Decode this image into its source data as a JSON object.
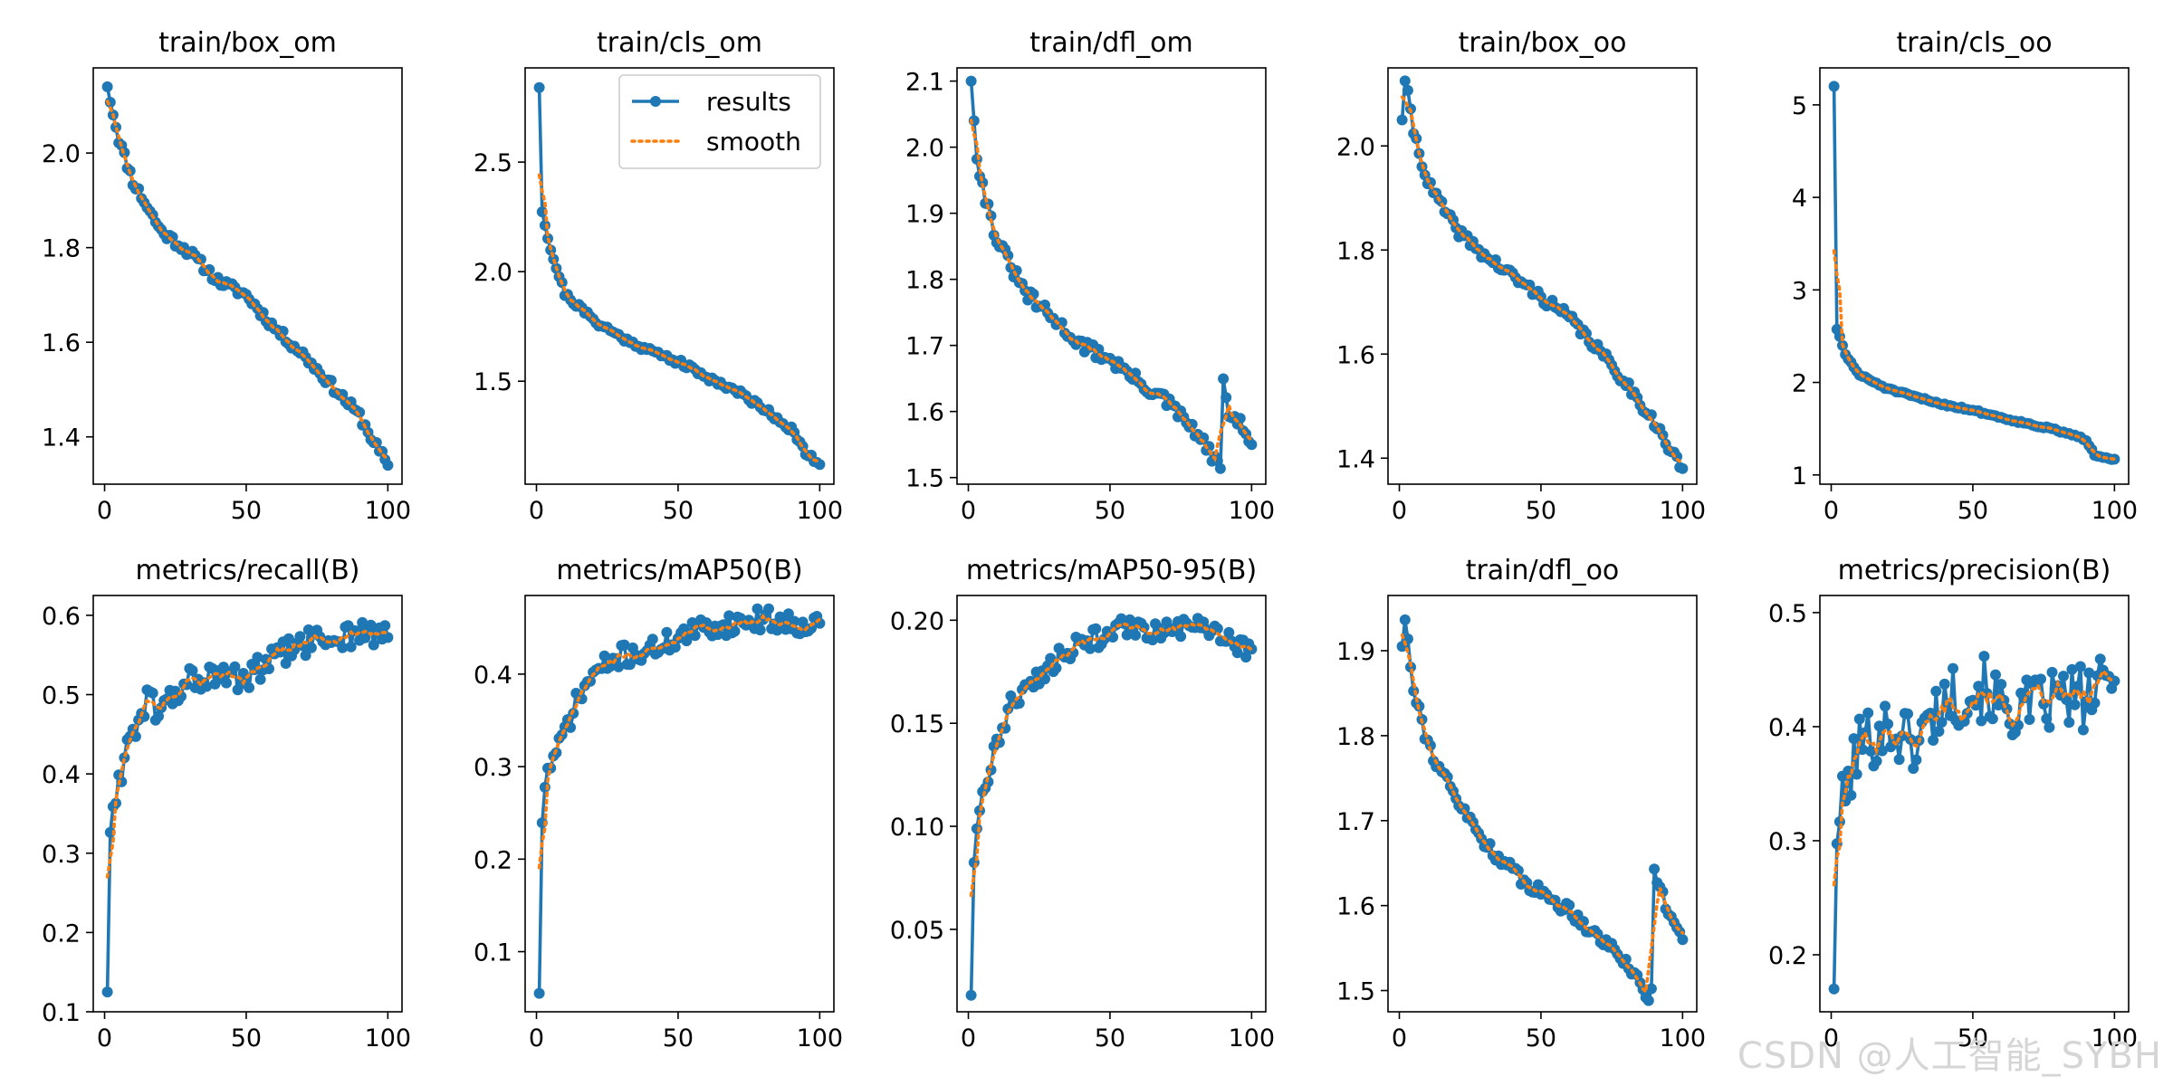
{
  "figure": {
    "legend": {
      "results_label": "results",
      "smooth_label": "smooth"
    },
    "colors": {
      "results": "#1f77b4",
      "smooth": "#ff7f0e"
    },
    "watermark": "CSDN @人工智能_SYBH"
  },
  "chart_data": [
    {
      "type": "line",
      "title": "train/box_om",
      "xlim": [
        -4,
        105
      ],
      "ylim": [
        1.3,
        2.18
      ],
      "xticks": [
        0,
        50,
        100
      ],
      "yticks": [
        1.4,
        1.6,
        1.8,
        2.0
      ],
      "yticklabels": [
        "1.4",
        "1.6",
        "1.8",
        "2.0"
      ],
      "legend": false,
      "series": [
        {
          "name": "results",
          "role": "results",
          "kind": "curve",
          "start": 2.14,
          "end": 1.34,
          "knots": [
            [
              1,
              2.14
            ],
            [
              5,
              2.03
            ],
            [
              10,
              1.94
            ],
            [
              20,
              1.835
            ],
            [
              30,
              1.79
            ],
            [
              40,
              1.73
            ],
            [
              50,
              1.7
            ],
            [
              60,
              1.63
            ],
            [
              70,
              1.575
            ],
            [
              80,
              1.51
            ],
            [
              90,
              1.445
            ],
            [
              95,
              1.39
            ],
            [
              100,
              1.34
            ]
          ],
          "noise": 0.01,
          "seed": 11
        },
        {
          "name": "smooth",
          "role": "smooth",
          "kind": "smooth"
        }
      ]
    },
    {
      "type": "line",
      "title": "train/cls_om",
      "xlim": [
        -4,
        105
      ],
      "ylim": [
        1.03,
        2.93
      ],
      "xticks": [
        0,
        50,
        100
      ],
      "yticks": [
        1.5,
        2.0,
        2.5
      ],
      "yticklabels": [
        "1.5",
        "2.0",
        "2.5"
      ],
      "legend": true,
      "series": [
        {
          "name": "results",
          "role": "results",
          "kind": "curve",
          "start": 2.84,
          "end": 1.12,
          "knots": [
            [
              1,
              2.84
            ],
            [
              2,
              2.28
            ],
            [
              5,
              2.1
            ],
            [
              10,
              1.9
            ],
            [
              20,
              1.78
            ],
            [
              30,
              1.7
            ],
            [
              40,
              1.64
            ],
            [
              50,
              1.59
            ],
            [
              60,
              1.52
            ],
            [
              70,
              1.46
            ],
            [
              80,
              1.38
            ],
            [
              90,
              1.28
            ],
            [
              95,
              1.17
            ],
            [
              100,
              1.12
            ]
          ],
          "noise": 0.014,
          "seed": 21
        },
        {
          "name": "smooth",
          "role": "smooth",
          "kind": "smooth"
        }
      ]
    },
    {
      "type": "line",
      "title": "train/dfl_om",
      "xlim": [
        -4,
        105
      ],
      "ylim": [
        1.49,
        2.12
      ],
      "xticks": [
        0,
        50,
        100
      ],
      "yticks": [
        1.5,
        1.6,
        1.7,
        1.8,
        1.9,
        2.0,
        2.1
      ],
      "yticklabels": [
        "1.5",
        "1.6",
        "1.7",
        "1.8",
        "1.9",
        "2.0",
        "2.1"
      ],
      "legend": false,
      "series": [
        {
          "name": "results",
          "role": "results",
          "kind": "curve",
          "start": 2.1,
          "end": 1.55,
          "knots": [
            [
              1,
              2.1
            ],
            [
              3,
              1.99
            ],
            [
              5,
              1.94
            ],
            [
              10,
              1.86
            ],
            [
              20,
              1.78
            ],
            [
              30,
              1.74
            ],
            [
              40,
              1.7
            ],
            [
              50,
              1.68
            ],
            [
              60,
              1.645
            ],
            [
              70,
              1.615
            ],
            [
              80,
              1.57
            ],
            [
              88,
              1.52
            ],
            [
              89,
              1.515
            ],
            [
              90,
              1.64
            ],
            [
              92,
              1.6
            ],
            [
              96,
              1.58
            ],
            [
              100,
              1.55
            ]
          ],
          "noise": 0.01,
          "seed": 31
        },
        {
          "name": "smooth",
          "role": "smooth",
          "kind": "smooth"
        }
      ]
    },
    {
      "type": "line",
      "title": "train/box_oo",
      "xlim": [
        -4,
        105
      ],
      "ylim": [
        1.35,
        2.15
      ],
      "xticks": [
        0,
        50,
        100
      ],
      "yticks": [
        1.4,
        1.6,
        1.8,
        2.0
      ],
      "yticklabels": [
        "1.4",
        "1.6",
        "1.8",
        "2.0"
      ],
      "legend": false,
      "series": [
        {
          "name": "results",
          "role": "results",
          "kind": "curve",
          "start": 2.05,
          "end": 1.38,
          "knots": [
            [
              1,
              2.05
            ],
            [
              2,
              2.13
            ],
            [
              5,
              2.03
            ],
            [
              10,
              1.93
            ],
            [
              20,
              1.84
            ],
            [
              30,
              1.79
            ],
            [
              40,
              1.75
            ],
            [
              50,
              1.71
            ],
            [
              60,
              1.67
            ],
            [
              70,
              1.61
            ],
            [
              80,
              1.545
            ],
            [
              90,
              1.47
            ],
            [
              95,
              1.42
            ],
            [
              100,
              1.38
            ]
          ],
          "noise": 0.01,
          "seed": 41
        },
        {
          "name": "smooth",
          "role": "smooth",
          "kind": "smooth"
        }
      ]
    },
    {
      "type": "line",
      "title": "train/cls_oo",
      "xlim": [
        -4,
        105
      ],
      "ylim": [
        0.9,
        5.4
      ],
      "xticks": [
        0,
        50,
        100
      ],
      "yticks": [
        1,
        2,
        3,
        4,
        5
      ],
      "yticklabels": [
        "1",
        "2",
        "3",
        "4",
        "5"
      ],
      "legend": false,
      "series": [
        {
          "name": "results",
          "role": "results",
          "kind": "curve",
          "start": 5.2,
          "end": 1.17,
          "knots": [
            [
              1,
              5.2
            ],
            [
              2,
              2.58
            ],
            [
              5,
              2.3
            ],
            [
              10,
              2.08
            ],
            [
              20,
              1.93
            ],
            [
              30,
              1.84
            ],
            [
              40,
              1.76
            ],
            [
              50,
              1.7
            ],
            [
              60,
              1.62
            ],
            [
              70,
              1.55
            ],
            [
              80,
              1.48
            ],
            [
              90,
              1.38
            ],
            [
              93,
              1.22
            ],
            [
              100,
              1.17
            ]
          ],
          "noise": 0.012,
          "seed": 51
        },
        {
          "name": "smooth",
          "role": "smooth",
          "kind": "smooth"
        }
      ]
    },
    {
      "type": "line",
      "title": "metrics/recall(B)",
      "xlim": [
        -4,
        105
      ],
      "ylim": [
        0.1,
        0.625
      ],
      "xticks": [
        0,
        50,
        100
      ],
      "yticks": [
        0.1,
        0.2,
        0.3,
        0.4,
        0.5,
        0.6
      ],
      "yticklabels": [
        "0.1",
        "0.2",
        "0.3",
        "0.4",
        "0.5",
        "0.6"
      ],
      "legend": false,
      "series": [
        {
          "name": "results",
          "role": "results",
          "kind": "curve",
          "start": 0.125,
          "end": 0.572,
          "knots": [
            [
              1,
              0.125
            ],
            [
              2,
              0.335
            ],
            [
              4,
              0.36
            ],
            [
              7,
              0.43
            ],
            [
              10,
              0.455
            ],
            [
              15,
              0.49
            ],
            [
              20,
              0.48
            ],
            [
              30,
              0.52
            ],
            [
              40,
              0.52
            ],
            [
              50,
              0.52
            ],
            [
              60,
              0.545
            ],
            [
              70,
              0.565
            ],
            [
              80,
              0.57
            ],
            [
              90,
              0.58
            ],
            [
              100,
              0.57
            ]
          ],
          "noise": 0.018,
          "seed": 61
        },
        {
          "name": "smooth",
          "role": "smooth",
          "kind": "smooth"
        }
      ]
    },
    {
      "type": "line",
      "title": "metrics/mAP50(B)",
      "xlim": [
        -4,
        105
      ],
      "ylim": [
        0.035,
        0.485
      ],
      "xticks": [
        0,
        50,
        100
      ],
      "yticks": [
        0.1,
        0.2,
        0.3,
        0.4
      ],
      "yticklabels": [
        "0.1",
        "0.2",
        "0.3",
        "0.4"
      ],
      "legend": false,
      "series": [
        {
          "name": "results",
          "role": "results",
          "kind": "curve",
          "start": 0.055,
          "end": 0.455,
          "knots": [
            [
              1,
              0.055
            ],
            [
              2,
              0.245
            ],
            [
              4,
              0.3
            ],
            [
              7,
              0.31
            ],
            [
              10,
              0.34
            ],
            [
              15,
              0.375
            ],
            [
              20,
              0.4
            ],
            [
              30,
              0.42
            ],
            [
              40,
              0.425
            ],
            [
              50,
              0.44
            ],
            [
              60,
              0.45
            ],
            [
              70,
              0.455
            ],
            [
              80,
              0.46
            ],
            [
              90,
              0.455
            ],
            [
              100,
              0.455
            ]
          ],
          "noise": 0.012,
          "seed": 71
        },
        {
          "name": "smooth",
          "role": "smooth",
          "kind": "smooth"
        }
      ]
    },
    {
      "type": "line",
      "title": "metrics/mAP50-95(B)",
      "xlim": [
        -4,
        105
      ],
      "ylim": [
        0.01,
        0.212
      ],
      "xticks": [
        0,
        50,
        100
      ],
      "yticks": [
        0.05,
        0.1,
        0.15,
        0.2
      ],
      "yticklabels": [
        "0.05",
        "0.10",
        "0.15",
        "0.20"
      ],
      "legend": false,
      "series": [
        {
          "name": "results",
          "role": "results",
          "kind": "curve",
          "start": 0.018,
          "end": 0.186,
          "knots": [
            [
              1,
              0.018
            ],
            [
              2,
              0.085
            ],
            [
              4,
              0.11
            ],
            [
              7,
              0.125
            ],
            [
              10,
              0.14
            ],
            [
              15,
              0.158
            ],
            [
              20,
              0.168
            ],
            [
              30,
              0.18
            ],
            [
              40,
              0.188
            ],
            [
              50,
              0.195
            ],
            [
              60,
              0.196
            ],
            [
              70,
              0.195
            ],
            [
              80,
              0.196
            ],
            [
              90,
              0.192
            ],
            [
              100,
              0.186
            ]
          ],
          "noise": 0.0055,
          "seed": 81
        },
        {
          "name": "smooth",
          "role": "smooth",
          "kind": "smooth"
        }
      ]
    },
    {
      "type": "line",
      "title": "train/dfl_oo",
      "xlim": [
        -4,
        105
      ],
      "ylim": [
        1.475,
        1.965
      ],
      "xticks": [
        0,
        50,
        100
      ],
      "yticks": [
        1.5,
        1.6,
        1.7,
        1.8,
        1.9
      ],
      "yticklabels": [
        "1.5",
        "1.6",
        "1.7",
        "1.8",
        "1.9"
      ],
      "legend": false,
      "series": [
        {
          "name": "results",
          "role": "results",
          "kind": "curve",
          "start": 1.905,
          "end": 1.56,
          "knots": [
            [
              1,
              1.905
            ],
            [
              2,
              1.94
            ],
            [
              5,
              1.86
            ],
            [
              10,
              1.79
            ],
            [
              20,
              1.725
            ],
            [
              30,
              1.675
            ],
            [
              40,
              1.64
            ],
            [
              50,
              1.615
            ],
            [
              60,
              1.595
            ],
            [
              70,
              1.565
            ],
            [
              80,
              1.535
            ],
            [
              88,
              1.49
            ],
            [
              89,
              1.5
            ],
            [
              90,
              1.645
            ],
            [
              93,
              1.61
            ],
            [
              97,
              1.585
            ],
            [
              100,
              1.56
            ]
          ],
          "noise": 0.008,
          "seed": 91
        },
        {
          "name": "smooth",
          "role": "smooth",
          "kind": "smooth"
        }
      ]
    },
    {
      "type": "line",
      "title": "metrics/precision(B)",
      "xlim": [
        -4,
        105
      ],
      "ylim": [
        0.15,
        0.515
      ],
      "xticks": [
        0,
        50,
        100
      ],
      "yticks": [
        0.2,
        0.3,
        0.4,
        0.5
      ],
      "yticklabels": [
        "0.2",
        "0.3",
        "0.4",
        "0.5"
      ],
      "legend": false,
      "series": [
        {
          "name": "results",
          "role": "results",
          "kind": "curve",
          "start": 0.17,
          "end": 0.44,
          "knots": [
            [
              1,
              0.17
            ],
            [
              2,
              0.31
            ],
            [
              4,
              0.33
            ],
            [
              7,
              0.36
            ],
            [
              10,
              0.385
            ],
            [
              20,
              0.4
            ],
            [
              30,
              0.385
            ],
            [
              40,
              0.425
            ],
            [
              50,
              0.43
            ],
            [
              55,
              0.435
            ],
            [
              60,
              0.415
            ],
            [
              70,
              0.415
            ],
            [
              80,
              0.425
            ],
            [
              90,
              0.425
            ],
            [
              100,
              0.44
            ]
          ],
          "noise": 0.028,
          "seed": 101
        },
        {
          "name": "smooth",
          "role": "smooth",
          "kind": "smooth"
        }
      ]
    }
  ]
}
